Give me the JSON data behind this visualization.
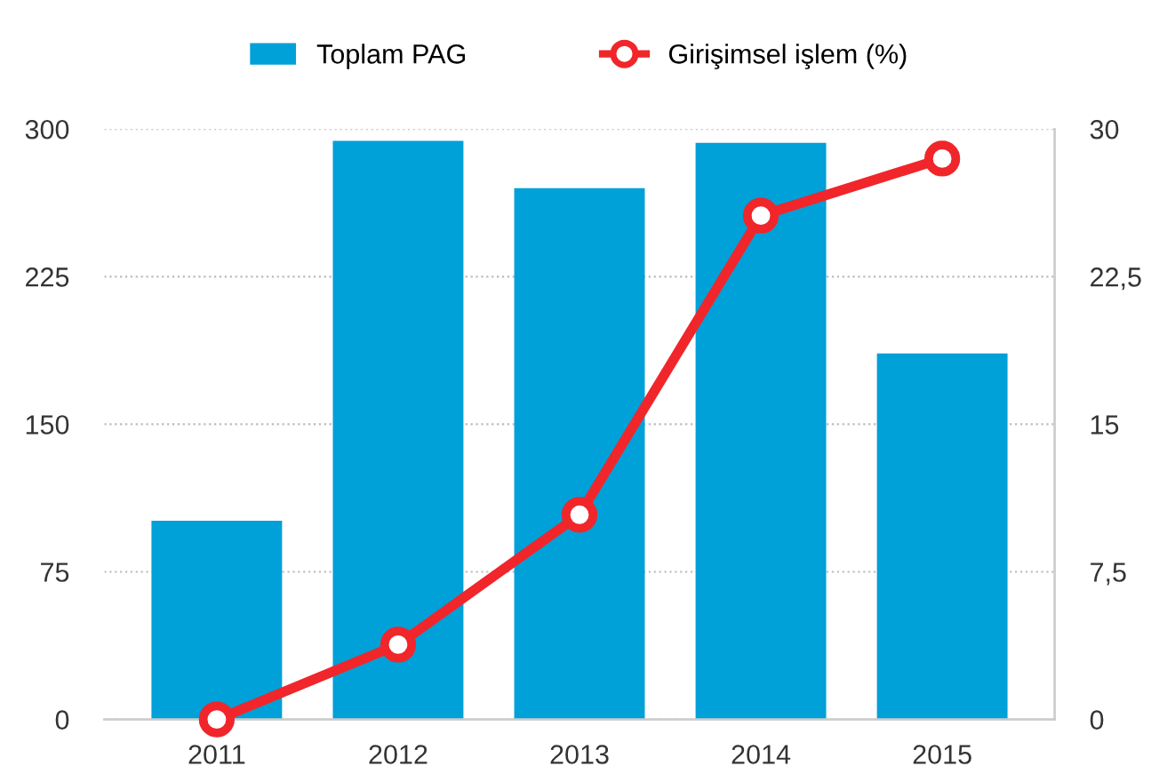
{
  "chart_data": {
    "type": "bar",
    "categories": [
      "2011",
      "2012",
      "2013",
      "2014",
      "2015"
    ],
    "series": [
      {
        "name": "Toplam PAG",
        "color": "#00a0d8",
        "values": [
          101,
          294,
          270,
          293,
          186
        ]
      },
      {
        "name": "Girişimsel işlem (%)",
        "type": "line",
        "axis": "y2",
        "color": "#f0262b",
        "values": [
          0,
          3.8,
          10.4,
          25.6,
          28.5
        ]
      }
    ],
    "ylim": [
      0,
      300
    ],
    "yticks": [
      0,
      75,
      150,
      225,
      300
    ],
    "y2lim": [
      0,
      30
    ],
    "y2ticks": [
      0,
      {
        "value": 7.5,
        "label": "7,5"
      },
      15,
      {
        "value": 22.5,
        "label": "22,5"
      },
      30
    ],
    "grid": "y",
    "legend": "top",
    "marker": "circle",
    "line_style": "solid"
  }
}
